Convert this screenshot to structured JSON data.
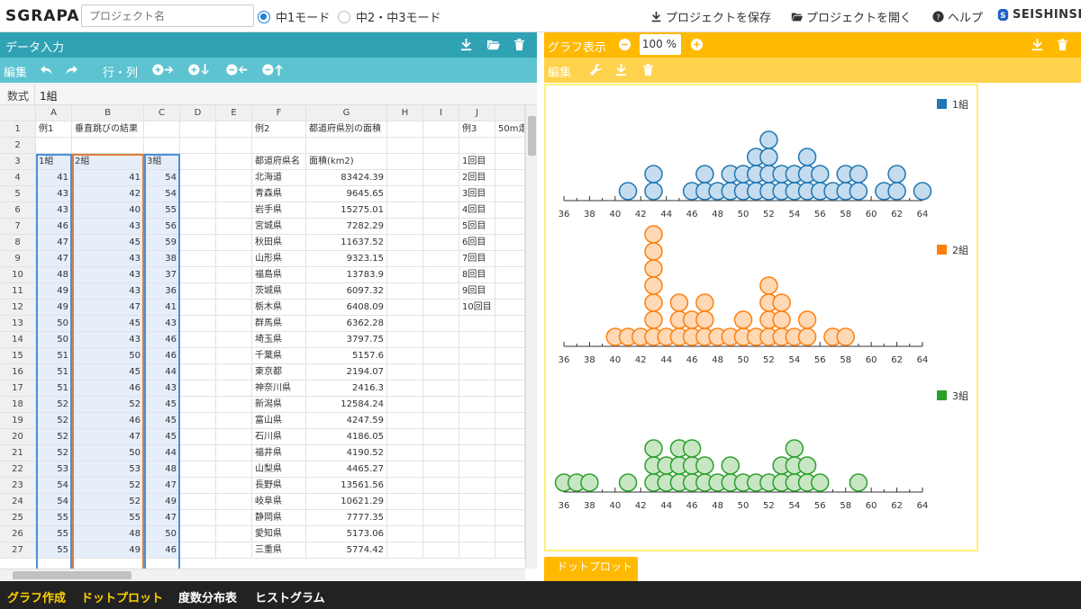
{
  "header": {
    "logo": "SGRAPA",
    "project_placeholder": "プロジェクト名",
    "mode1": "中1モード",
    "mode2": "中2・中3モード",
    "save": "プロジェクトを保存",
    "open": "プロジェクトを開く",
    "help": "ヘルプ",
    "brand": "SEISHINSHA"
  },
  "data_panel": {
    "title": "データ入力",
    "edit": "編集",
    "rowcol": "行・列",
    "formula_label": "数式",
    "formula_value": "1組"
  },
  "graph_panel": {
    "title": "グラフ表示",
    "zoom": "100",
    "zoom_unit": "%",
    "edit": "編集",
    "tab": "ドットプロット"
  },
  "footer": {
    "brand": "グラフ作成",
    "items": [
      "ドットプロット",
      "度数分布表",
      "ヒストグラム"
    ]
  },
  "sheet": {
    "columns": [
      "A",
      "B",
      "C",
      "D",
      "E",
      "F",
      "G",
      "H",
      "I",
      "J",
      ""
    ],
    "rows": [
      {
        "n": "1",
        "a": "例1",
        "b": "垂直跳びの結果",
        "c": "",
        "f": "例2",
        "g": "都道府県別の面積",
        "j": "例3",
        "k": "50m走"
      },
      {
        "n": "2",
        "a": "",
        "b": "",
        "c": "",
        "f": "",
        "g": "",
        "j": "",
        "k": ""
      },
      {
        "n": "3",
        "a": "1組",
        "b": "2組",
        "c": "3組",
        "f": "都道府県名",
        "g": "面積(km2)",
        "j": "1回目",
        "k": ""
      },
      {
        "n": "4",
        "a": "41",
        "b": "41",
        "c": "54",
        "f": "北海道",
        "g": "83424.39",
        "j": "2回目",
        "k": ""
      },
      {
        "n": "5",
        "a": "43",
        "b": "42",
        "c": "54",
        "f": "青森県",
        "g": "9645.65",
        "j": "3回目",
        "k": ""
      },
      {
        "n": "6",
        "a": "43",
        "b": "40",
        "c": "55",
        "f": "岩手県",
        "g": "15275.01",
        "j": "4回目",
        "k": ""
      },
      {
        "n": "7",
        "a": "46",
        "b": "43",
        "c": "56",
        "f": "宮城県",
        "g": "7282.29",
        "j": "5回目",
        "k": ""
      },
      {
        "n": "8",
        "a": "47",
        "b": "45",
        "c": "59",
        "f": "秋田県",
        "g": "11637.52",
        "j": "6回目",
        "k": ""
      },
      {
        "n": "9",
        "a": "47",
        "b": "43",
        "c": "38",
        "f": "山形県",
        "g": "9323.15",
        "j": "7回目",
        "k": ""
      },
      {
        "n": "10",
        "a": "48",
        "b": "43",
        "c": "37",
        "f": "福島県",
        "g": "13783.9",
        "j": "8回目",
        "k": ""
      },
      {
        "n": "11",
        "a": "49",
        "b": "43",
        "c": "36",
        "f": "茨城県",
        "g": "6097.32",
        "j": "9回目",
        "k": ""
      },
      {
        "n": "12",
        "a": "49",
        "b": "47",
        "c": "41",
        "f": "栃木県",
        "g": "6408.09",
        "j": "10回目",
        "k": ""
      },
      {
        "n": "13",
        "a": "50",
        "b": "45",
        "c": "43",
        "f": "群馬県",
        "g": "6362.28",
        "j": "",
        "k": ""
      },
      {
        "n": "14",
        "a": "50",
        "b": "43",
        "c": "46",
        "f": "埼玉県",
        "g": "3797.75",
        "j": "",
        "k": ""
      },
      {
        "n": "15",
        "a": "51",
        "b": "50",
        "c": "46",
        "f": "千葉県",
        "g": "5157.6",
        "j": "",
        "k": ""
      },
      {
        "n": "16",
        "a": "51",
        "b": "45",
        "c": "44",
        "f": "東京都",
        "g": "2194.07",
        "j": "",
        "k": ""
      },
      {
        "n": "17",
        "a": "51",
        "b": "46",
        "c": "43",
        "f": "神奈川県",
        "g": "2416.3",
        "j": "",
        "k": ""
      },
      {
        "n": "18",
        "a": "52",
        "b": "52",
        "c": "45",
        "f": "新潟県",
        "g": "12584.24",
        "j": "",
        "k": ""
      },
      {
        "n": "19",
        "a": "52",
        "b": "46",
        "c": "45",
        "f": "富山県",
        "g": "4247.59",
        "j": "",
        "k": ""
      },
      {
        "n": "20",
        "a": "52",
        "b": "47",
        "c": "45",
        "f": "石川県",
        "g": "4186.05",
        "j": "",
        "k": ""
      },
      {
        "n": "21",
        "a": "52",
        "b": "50",
        "c": "44",
        "f": "福井県",
        "g": "4190.52",
        "j": "",
        "k": ""
      },
      {
        "n": "22",
        "a": "53",
        "b": "53",
        "c": "48",
        "f": "山梨県",
        "g": "4465.27",
        "j": "",
        "k": ""
      },
      {
        "n": "23",
        "a": "54",
        "b": "52",
        "c": "47",
        "f": "長野県",
        "g": "13561.56",
        "j": "",
        "k": ""
      },
      {
        "n": "24",
        "a": "54",
        "b": "52",
        "c": "49",
        "f": "岐阜県",
        "g": "10621.29",
        "j": "",
        "k": ""
      },
      {
        "n": "25",
        "a": "55",
        "b": "55",
        "c": "47",
        "f": "静岡県",
        "g": "7777.35",
        "j": "",
        "k": ""
      },
      {
        "n": "26",
        "a": "55",
        "b": "48",
        "c": "50",
        "f": "愛知県",
        "g": "5173.06",
        "j": "",
        "k": ""
      },
      {
        "n": "27",
        "a": "55",
        "b": "49",
        "c": "46",
        "f": "三重県",
        "g": "5774.42",
        "j": "",
        "k": ""
      }
    ]
  },
  "chart_data": [
    {
      "type": "scatter",
      "legend": "1組",
      "color": "#1f77b4",
      "fill": "#c5dcee",
      "xlim": [
        36,
        64
      ],
      "ticks": [
        36,
        38,
        40,
        42,
        44,
        46,
        48,
        50,
        52,
        54,
        56,
        58,
        60,
        62,
        64
      ],
      "points": [
        [
          41,
          1
        ],
        [
          43,
          2
        ],
        [
          46,
          1
        ],
        [
          47,
          2
        ],
        [
          48,
          1
        ],
        [
          49,
          2
        ],
        [
          50,
          2
        ],
        [
          51,
          3
        ],
        [
          52,
          4
        ],
        [
          53,
          2
        ],
        [
          54,
          2
        ],
        [
          55,
          3
        ],
        [
          56,
          2
        ],
        [
          57,
          1
        ],
        [
          58,
          2
        ],
        [
          59,
          2
        ],
        [
          61,
          1
        ],
        [
          62,
          2
        ],
        [
          64,
          1
        ]
      ]
    },
    {
      "type": "scatter",
      "legend": "2組",
      "color": "#ff7f0e",
      "fill": "#ffd9b5",
      "xlim": [
        36,
        64
      ],
      "ticks": [
        36,
        38,
        40,
        42,
        44,
        46,
        48,
        50,
        52,
        54,
        56,
        58,
        60,
        62,
        64
      ],
      "points": [
        [
          40,
          1
        ],
        [
          41,
          1
        ],
        [
          42,
          1
        ],
        [
          43,
          7
        ],
        [
          44,
          1
        ],
        [
          45,
          3
        ],
        [
          46,
          2
        ],
        [
          47,
          3
        ],
        [
          48,
          1
        ],
        [
          49,
          1
        ],
        [
          50,
          2
        ],
        [
          51,
          1
        ],
        [
          52,
          4
        ],
        [
          53,
          3
        ],
        [
          54,
          1
        ],
        [
          55,
          2
        ],
        [
          57,
          1
        ],
        [
          58,
          1
        ]
      ]
    },
    {
      "type": "scatter",
      "legend": "3組",
      "color": "#2ca02c",
      "fill": "#c8e6c4",
      "xlim": [
        36,
        64
      ],
      "ticks": [
        36,
        38,
        40,
        42,
        44,
        46,
        48,
        50,
        52,
        54,
        56,
        58,
        60,
        62,
        64
      ],
      "points": [
        [
          36,
          1
        ],
        [
          37,
          1
        ],
        [
          38,
          1
        ],
        [
          41,
          1
        ],
        [
          43,
          3
        ],
        [
          44,
          2
        ],
        [
          45,
          3
        ],
        [
          46,
          3
        ],
        [
          47,
          2
        ],
        [
          48,
          1
        ],
        [
          49,
          2
        ],
        [
          50,
          1
        ],
        [
          51,
          1
        ],
        [
          52,
          1
        ],
        [
          53,
          2
        ],
        [
          54,
          3
        ],
        [
          55,
          2
        ],
        [
          56,
          1
        ],
        [
          59,
          1
        ]
      ]
    }
  ]
}
